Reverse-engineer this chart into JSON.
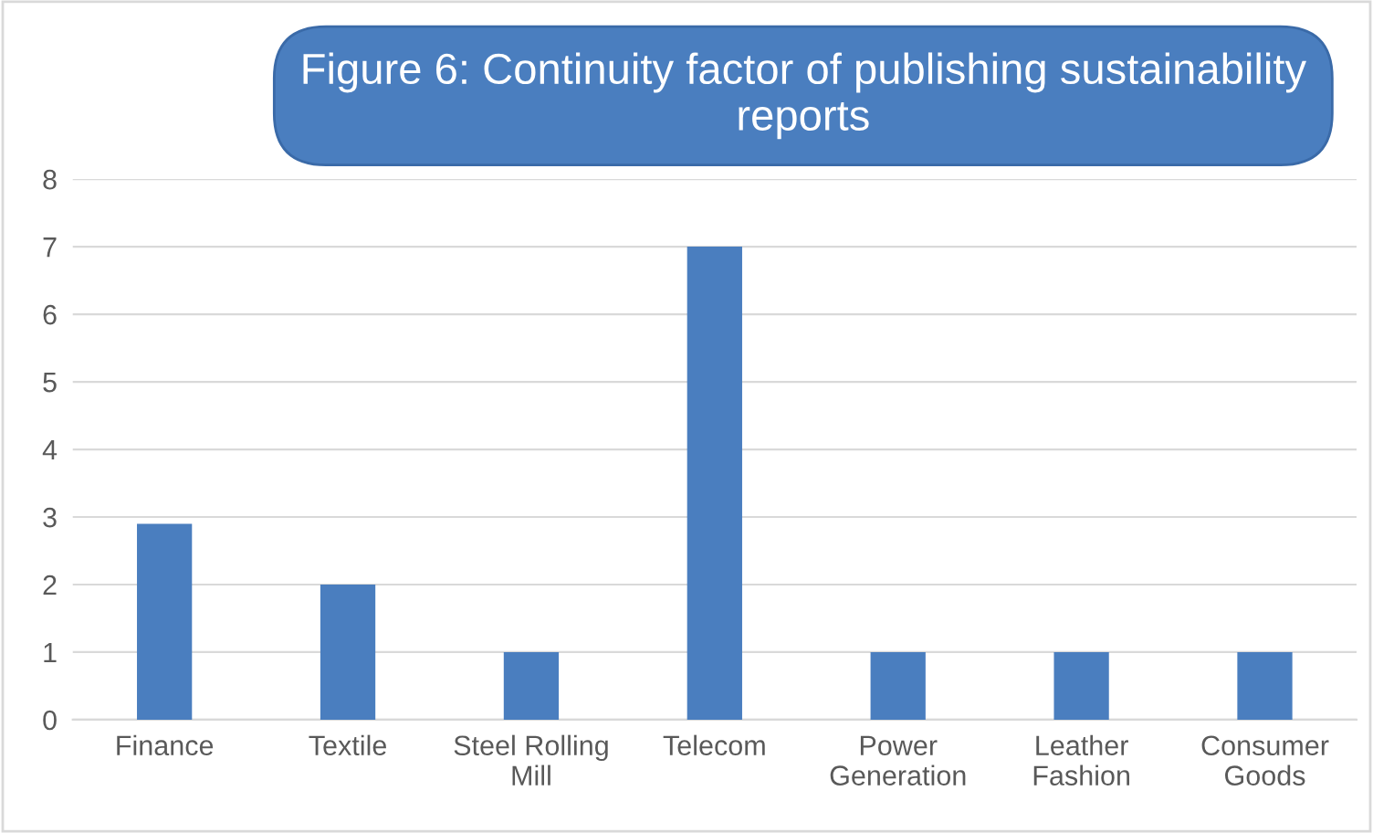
{
  "chart_data": {
    "type": "bar",
    "title": "Figure 6: Continuity factor of publishing sustainability reports",
    "categories": [
      "Finance",
      "Textile",
      "Steel Rolling\nMill",
      "Telecom",
      "Power\nGeneration",
      "Leather\nFashion",
      "Consumer\nGoods"
    ],
    "values": [
      2.9,
      2,
      1,
      7,
      1,
      1,
      1
    ],
    "color": "#4a7ebf",
    "ylim": [
      0,
      8
    ],
    "yticks": [
      0,
      1,
      2,
      3,
      4,
      5,
      6,
      7,
      8
    ],
    "grid": "y"
  }
}
